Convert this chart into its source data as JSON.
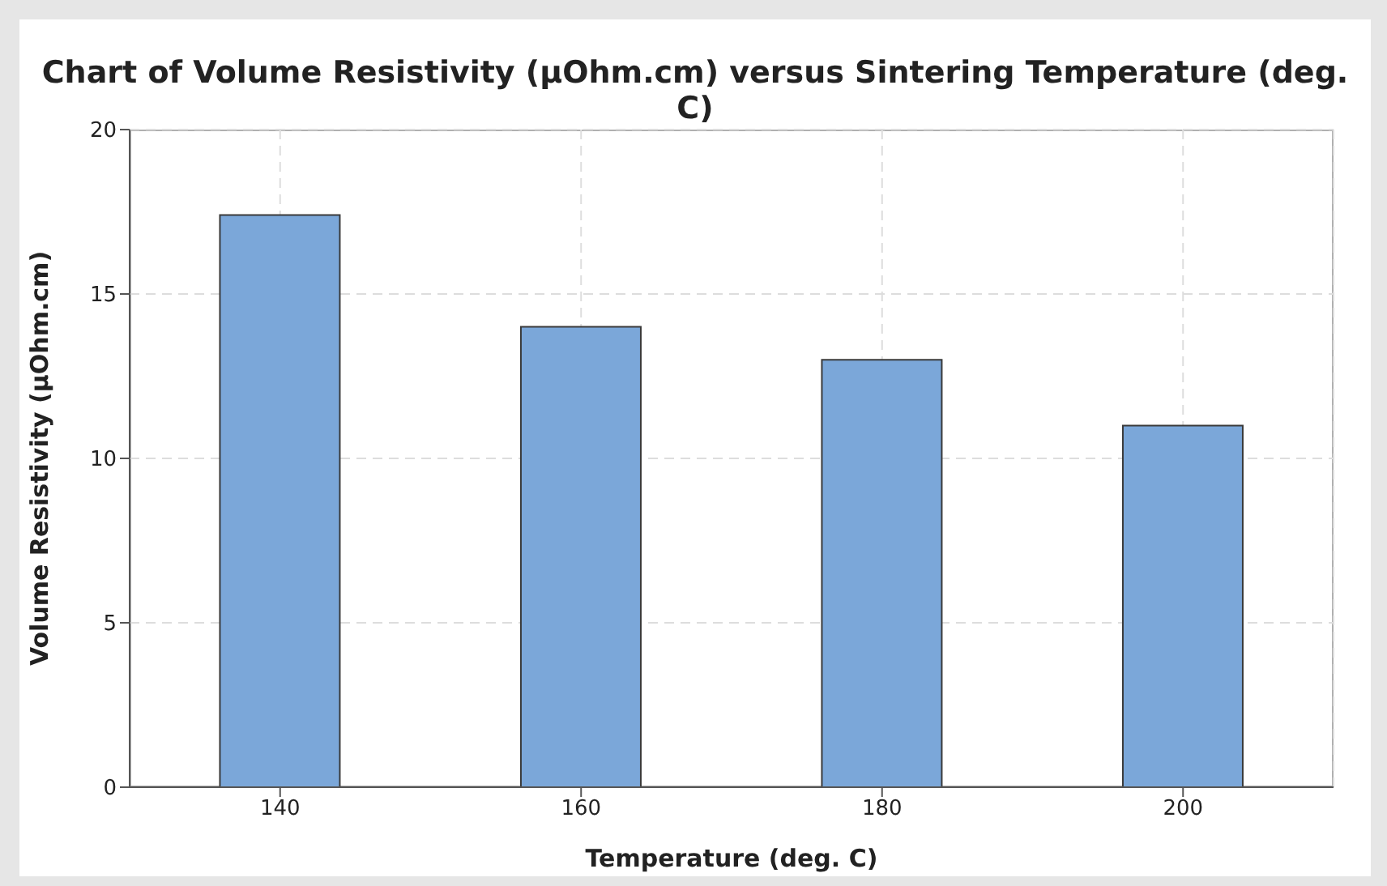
{
  "chart_data": {
    "type": "bar",
    "title": "Chart of Volume Resistivity (µOhm.cm) versus Sintering Temperature (deg. C)",
    "xlabel": "Temperature (deg. C)",
    "ylabel": "Volume Resistivity (µOhm.cm)",
    "categories": [
      "140",
      "160",
      "180",
      "200"
    ],
    "values": [
      17.4,
      14,
      13,
      11
    ],
    "color": "#7ba7d9",
    "ylim": [
      0,
      20
    ],
    "yticks": [
      0,
      5,
      10,
      15,
      20
    ],
    "grid": true
  }
}
